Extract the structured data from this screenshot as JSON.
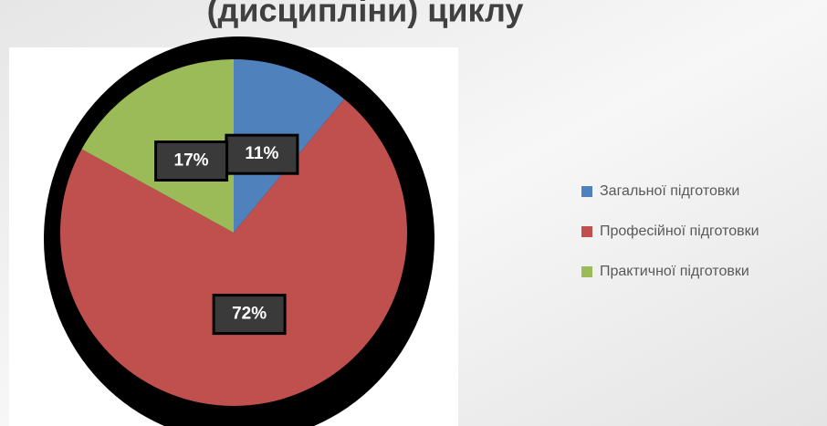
{
  "chart_data": {
    "type": "pie",
    "title": "(дисципліни) циклу",
    "categories": [
      "Загальної підготовки",
      "Професійної підготовки",
      "Практичної підготовки"
    ],
    "values": [
      11,
      72,
      17
    ],
    "value_labels": [
      "11%",
      "72%",
      "17%"
    ],
    "colors": [
      "#4f81bd",
      "#c0504d",
      "#9bbb59"
    ],
    "legend": "right"
  }
}
